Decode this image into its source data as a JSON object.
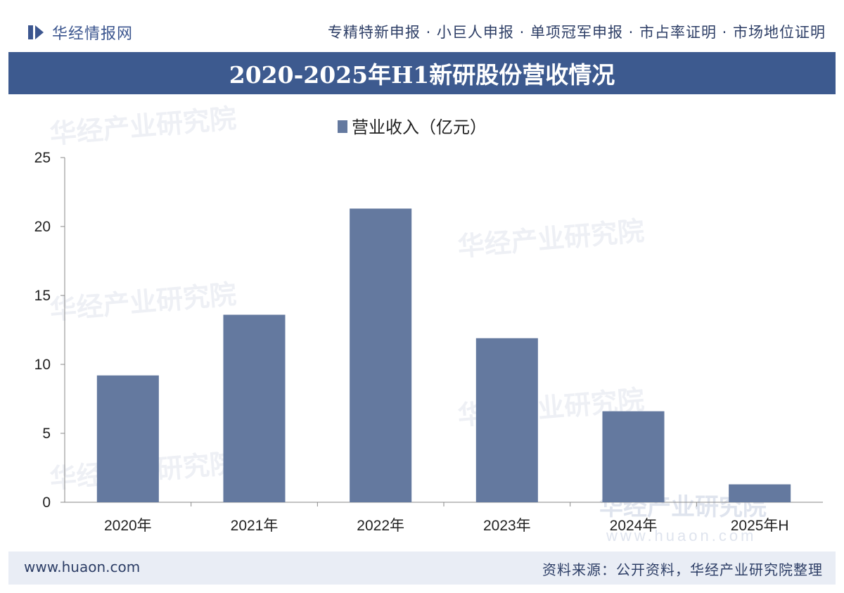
{
  "header": {
    "logo_text": "华经情报网",
    "tagline": "专精特新申报 · 小巨人申报 · 单项冠军申报 · 市占率证明 · 市场地位证明"
  },
  "title": "2020-2025年H1新研股份营收情况",
  "footer": {
    "website": "www.huaon.com",
    "source": "资料来源：公开资料，华经产业研究院整理"
  },
  "watermark": {
    "text": "华经产业研究院",
    "url": "www.huaon.com"
  },
  "chart_data": {
    "type": "bar",
    "categories": [
      "2020年",
      "2021年",
      "2022年",
      "2023年",
      "2024年",
      "2025年H"
    ],
    "series": [
      {
        "name": "营业收入（亿元）",
        "values": [
          9.2,
          13.6,
          21.3,
          11.9,
          6.6,
          1.3
        ]
      }
    ],
    "ylim": [
      0,
      25
    ],
    "yticks": [
      0,
      5,
      10,
      15,
      20,
      25
    ],
    "grid": false,
    "legend": "top",
    "bar_color": "#64799f"
  }
}
